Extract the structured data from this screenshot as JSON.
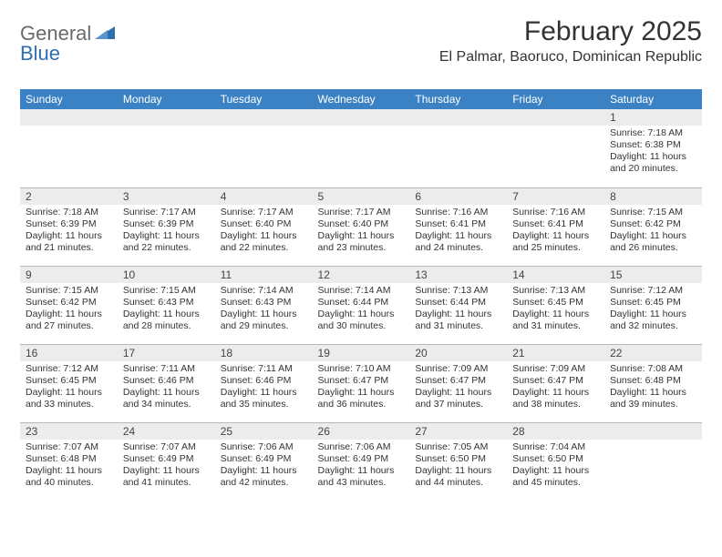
{
  "brand": {
    "part1": "General",
    "part2": "Blue"
  },
  "title": "February 2025",
  "location": "El Palmar, Baoruco, Dominican Republic",
  "colors": {
    "header_bg": "#3b82c4",
    "header_text": "#ffffff",
    "daynum_bg": "#ececec",
    "border": "#b8b8b8",
    "brand_gray": "#6a6a6a",
    "brand_blue": "#2f6fb0",
    "text": "#333333",
    "background": "#ffffff"
  },
  "fonts": {
    "title_size": 30,
    "location_size": 16,
    "dayhead_size": 12,
    "body_size": 10.5
  },
  "day_headers": [
    "Sunday",
    "Monday",
    "Tuesday",
    "Wednesday",
    "Thursday",
    "Friday",
    "Saturday"
  ],
  "weeks": [
    [
      {
        "num": "",
        "lines": [
          "",
          "",
          "",
          ""
        ]
      },
      {
        "num": "",
        "lines": [
          "",
          "",
          "",
          ""
        ]
      },
      {
        "num": "",
        "lines": [
          "",
          "",
          "",
          ""
        ]
      },
      {
        "num": "",
        "lines": [
          "",
          "",
          "",
          ""
        ]
      },
      {
        "num": "",
        "lines": [
          "",
          "",
          "",
          ""
        ]
      },
      {
        "num": "",
        "lines": [
          "",
          "",
          "",
          ""
        ]
      },
      {
        "num": "1",
        "lines": [
          "Sunrise: 7:18 AM",
          "Sunset: 6:38 PM",
          "Daylight: 11 hours",
          "and 20 minutes."
        ]
      }
    ],
    [
      {
        "num": "2",
        "lines": [
          "Sunrise: 7:18 AM",
          "Sunset: 6:39 PM",
          "Daylight: 11 hours",
          "and 21 minutes."
        ]
      },
      {
        "num": "3",
        "lines": [
          "Sunrise: 7:17 AM",
          "Sunset: 6:39 PM",
          "Daylight: 11 hours",
          "and 22 minutes."
        ]
      },
      {
        "num": "4",
        "lines": [
          "Sunrise: 7:17 AM",
          "Sunset: 6:40 PM",
          "Daylight: 11 hours",
          "and 22 minutes."
        ]
      },
      {
        "num": "5",
        "lines": [
          "Sunrise: 7:17 AM",
          "Sunset: 6:40 PM",
          "Daylight: 11 hours",
          "and 23 minutes."
        ]
      },
      {
        "num": "6",
        "lines": [
          "Sunrise: 7:16 AM",
          "Sunset: 6:41 PM",
          "Daylight: 11 hours",
          "and 24 minutes."
        ]
      },
      {
        "num": "7",
        "lines": [
          "Sunrise: 7:16 AM",
          "Sunset: 6:41 PM",
          "Daylight: 11 hours",
          "and 25 minutes."
        ]
      },
      {
        "num": "8",
        "lines": [
          "Sunrise: 7:15 AM",
          "Sunset: 6:42 PM",
          "Daylight: 11 hours",
          "and 26 minutes."
        ]
      }
    ],
    [
      {
        "num": "9",
        "lines": [
          "Sunrise: 7:15 AM",
          "Sunset: 6:42 PM",
          "Daylight: 11 hours",
          "and 27 minutes."
        ]
      },
      {
        "num": "10",
        "lines": [
          "Sunrise: 7:15 AM",
          "Sunset: 6:43 PM",
          "Daylight: 11 hours",
          "and 28 minutes."
        ]
      },
      {
        "num": "11",
        "lines": [
          "Sunrise: 7:14 AM",
          "Sunset: 6:43 PM",
          "Daylight: 11 hours",
          "and 29 minutes."
        ]
      },
      {
        "num": "12",
        "lines": [
          "Sunrise: 7:14 AM",
          "Sunset: 6:44 PM",
          "Daylight: 11 hours",
          "and 30 minutes."
        ]
      },
      {
        "num": "13",
        "lines": [
          "Sunrise: 7:13 AM",
          "Sunset: 6:44 PM",
          "Daylight: 11 hours",
          "and 31 minutes."
        ]
      },
      {
        "num": "14",
        "lines": [
          "Sunrise: 7:13 AM",
          "Sunset: 6:45 PM",
          "Daylight: 11 hours",
          "and 31 minutes."
        ]
      },
      {
        "num": "15",
        "lines": [
          "Sunrise: 7:12 AM",
          "Sunset: 6:45 PM",
          "Daylight: 11 hours",
          "and 32 minutes."
        ]
      }
    ],
    [
      {
        "num": "16",
        "lines": [
          "Sunrise: 7:12 AM",
          "Sunset: 6:45 PM",
          "Daylight: 11 hours",
          "and 33 minutes."
        ]
      },
      {
        "num": "17",
        "lines": [
          "Sunrise: 7:11 AM",
          "Sunset: 6:46 PM",
          "Daylight: 11 hours",
          "and 34 minutes."
        ]
      },
      {
        "num": "18",
        "lines": [
          "Sunrise: 7:11 AM",
          "Sunset: 6:46 PM",
          "Daylight: 11 hours",
          "and 35 minutes."
        ]
      },
      {
        "num": "19",
        "lines": [
          "Sunrise: 7:10 AM",
          "Sunset: 6:47 PM",
          "Daylight: 11 hours",
          "and 36 minutes."
        ]
      },
      {
        "num": "20",
        "lines": [
          "Sunrise: 7:09 AM",
          "Sunset: 6:47 PM",
          "Daylight: 11 hours",
          "and 37 minutes."
        ]
      },
      {
        "num": "21",
        "lines": [
          "Sunrise: 7:09 AM",
          "Sunset: 6:47 PM",
          "Daylight: 11 hours",
          "and 38 minutes."
        ]
      },
      {
        "num": "22",
        "lines": [
          "Sunrise: 7:08 AM",
          "Sunset: 6:48 PM",
          "Daylight: 11 hours",
          "and 39 minutes."
        ]
      }
    ],
    [
      {
        "num": "23",
        "lines": [
          "Sunrise: 7:07 AM",
          "Sunset: 6:48 PM",
          "Daylight: 11 hours",
          "and 40 minutes."
        ]
      },
      {
        "num": "24",
        "lines": [
          "Sunrise: 7:07 AM",
          "Sunset: 6:49 PM",
          "Daylight: 11 hours",
          "and 41 minutes."
        ]
      },
      {
        "num": "25",
        "lines": [
          "Sunrise: 7:06 AM",
          "Sunset: 6:49 PM",
          "Daylight: 11 hours",
          "and 42 minutes."
        ]
      },
      {
        "num": "26",
        "lines": [
          "Sunrise: 7:06 AM",
          "Sunset: 6:49 PM",
          "Daylight: 11 hours",
          "and 43 minutes."
        ]
      },
      {
        "num": "27",
        "lines": [
          "Sunrise: 7:05 AM",
          "Sunset: 6:50 PM",
          "Daylight: 11 hours",
          "and 44 minutes."
        ]
      },
      {
        "num": "28",
        "lines": [
          "Sunrise: 7:04 AM",
          "Sunset: 6:50 PM",
          "Daylight: 11 hours",
          "and 45 minutes."
        ]
      },
      {
        "num": "",
        "lines": [
          "",
          "",
          "",
          ""
        ]
      }
    ]
  ]
}
